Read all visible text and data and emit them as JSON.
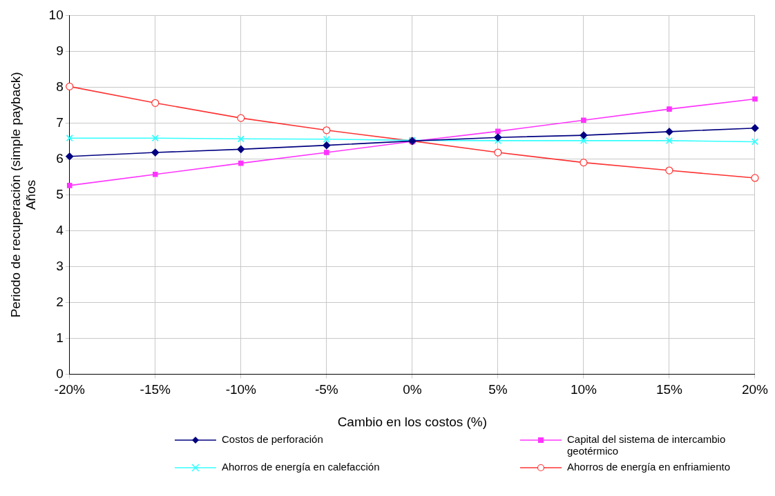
{
  "chart_data": {
    "type": "line",
    "xlabel": "Cambio en los costos (%)",
    "ylabel": "Periodo de recuperación (simple payback)\nAños",
    "categories": [
      "-20%",
      "-15%",
      "-10%",
      "-5%",
      "0%",
      "5%",
      "10%",
      "15%",
      "20%"
    ],
    "ylim": [
      0,
      10
    ],
    "yticks": [
      0,
      1,
      2,
      3,
      4,
      5,
      6,
      7,
      8,
      9,
      10
    ],
    "grid": true,
    "legend": "bottom",
    "series": [
      {
        "name": "Costos de perforación",
        "color": "#000080",
        "marker": "diamond",
        "values": [
          6.07,
          6.18,
          6.27,
          6.38,
          6.5,
          6.6,
          6.66,
          6.76,
          6.86
        ]
      },
      {
        "name": "Capital del sistema de intercambio geotérmico",
        "color": "#ff33ff",
        "marker": "square",
        "values": [
          5.26,
          5.57,
          5.88,
          6.18,
          6.49,
          6.77,
          7.08,
          7.39,
          7.67
        ]
      },
      {
        "name": "Ahorros de energía en calefacción",
        "color": "#33ffff",
        "marker": "cross",
        "values": [
          6.58,
          6.58,
          6.56,
          6.55,
          6.52,
          6.51,
          6.51,
          6.51,
          6.48
        ]
      },
      {
        "name": "Ahorros de energía en enfriamiento",
        "color": "#ff3333",
        "marker": "circle",
        "values": [
          8.02,
          7.56,
          7.14,
          6.8,
          6.5,
          6.18,
          5.9,
          5.68,
          5.47
        ]
      }
    ]
  }
}
